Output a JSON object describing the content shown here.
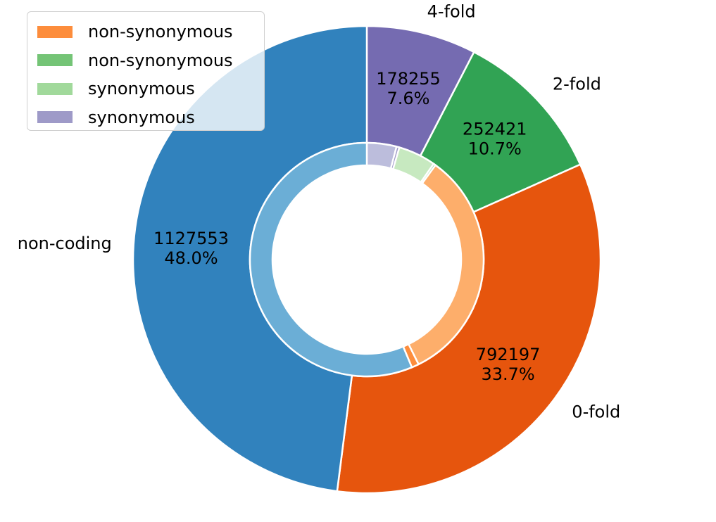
{
  "chart_data": {
    "type": "pie",
    "outer_ring": {
      "labels": [
        "4-fold",
        "2-fold",
        "0-fold",
        "non-coding"
      ],
      "values": [
        178255,
        252421,
        792197,
        1127553
      ],
      "percent_labels": [
        "7.6%",
        "10.7%",
        "33.7%",
        "48.0%"
      ],
      "colors": [
        "#756bb1",
        "#31a354",
        "#e6550d",
        "#3182bd"
      ]
    },
    "inner_ring": {
      "fractions": [
        0.041,
        0.004,
        0.052,
        0.003,
        0.327,
        0.01,
        0.563
      ],
      "colors": [
        "#bcbddc",
        "#9e9ac8",
        "#c7e9c0",
        "#74c476",
        "#fdae6b",
        "#fd8d3c",
        "#6baed6"
      ]
    },
    "legend": {
      "placement": "top-left",
      "entries": [
        {
          "label": "non-synonymous",
          "color": "#fd8d3c"
        },
        {
          "label": "non-synonymous",
          "color": "#74c476"
        },
        {
          "label": "synonymous",
          "color": "#a1d99b"
        },
        {
          "label": "synonymous",
          "color": "#9e9ac8"
        }
      ]
    },
    "start_angle": 90,
    "direction": "clockwise"
  }
}
